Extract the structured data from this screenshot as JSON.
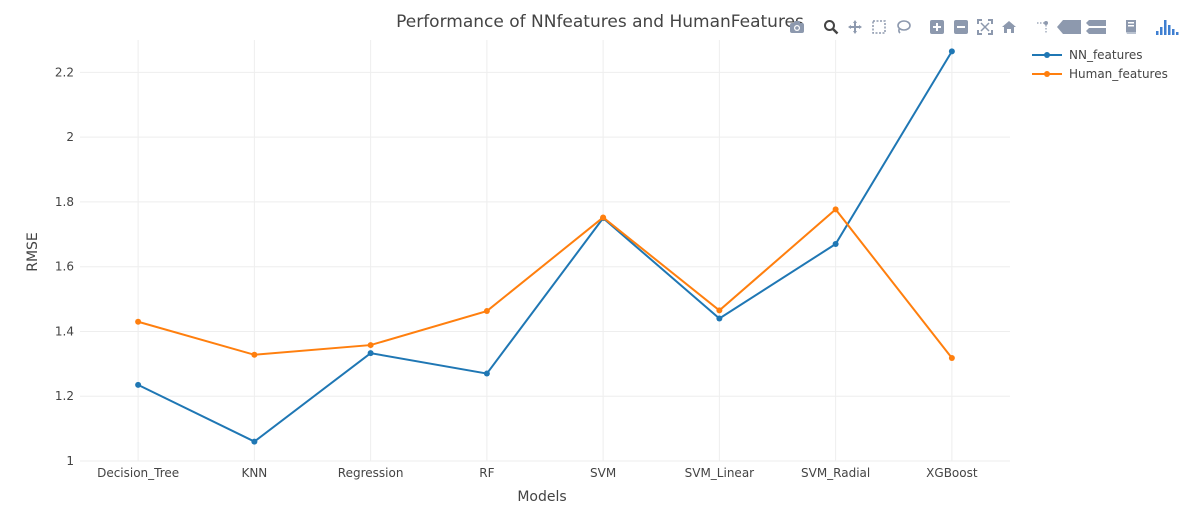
{
  "chart_data": {
    "type": "line",
    "title": "Performance of NNfeatures and HumanFeatures",
    "xlabel": "Models",
    "ylabel": "RMSE",
    "categories": [
      "Decision_Tree",
      "KNN",
      "Regression",
      "RF",
      "SVM",
      "SVM_Linear",
      "SVM_Radial",
      "XGBoost"
    ],
    "ylim": [
      1.0,
      2.3
    ],
    "yticks": [
      1,
      1.2,
      1.4,
      1.6,
      1.8,
      2,
      2.2
    ],
    "ytick_labels": [
      "1",
      "1.2",
      "1.4",
      "1.6",
      "1.8",
      "2",
      "2.2"
    ],
    "grid": true,
    "legend_position": "top-right",
    "series": [
      {
        "name": "NN_features",
        "color": "#1f77b4",
        "values": [
          1.235,
          1.06,
          1.333,
          1.27,
          1.75,
          1.44,
          1.67,
          2.265
        ]
      },
      {
        "name": "Human_features",
        "color": "#ff7f0e",
        "values": [
          1.43,
          1.328,
          1.358,
          1.463,
          1.752,
          1.465,
          1.777,
          1.318
        ]
      }
    ]
  },
  "modebar": {
    "icon_color": "#8d99ae",
    "logo_color": "#3f7fd1",
    "buttons": [
      "camera-icon",
      "zoom-icon",
      "pan-icon",
      "box-select-icon",
      "lasso-select-icon",
      "zoom-in-icon",
      "zoom-out-icon",
      "autoscale-icon",
      "reset-axes-icon",
      "spike-lines-icon",
      "hover-closest-icon",
      "hover-compare-icon",
      "edit-icon",
      "plotly-logo-icon"
    ]
  }
}
